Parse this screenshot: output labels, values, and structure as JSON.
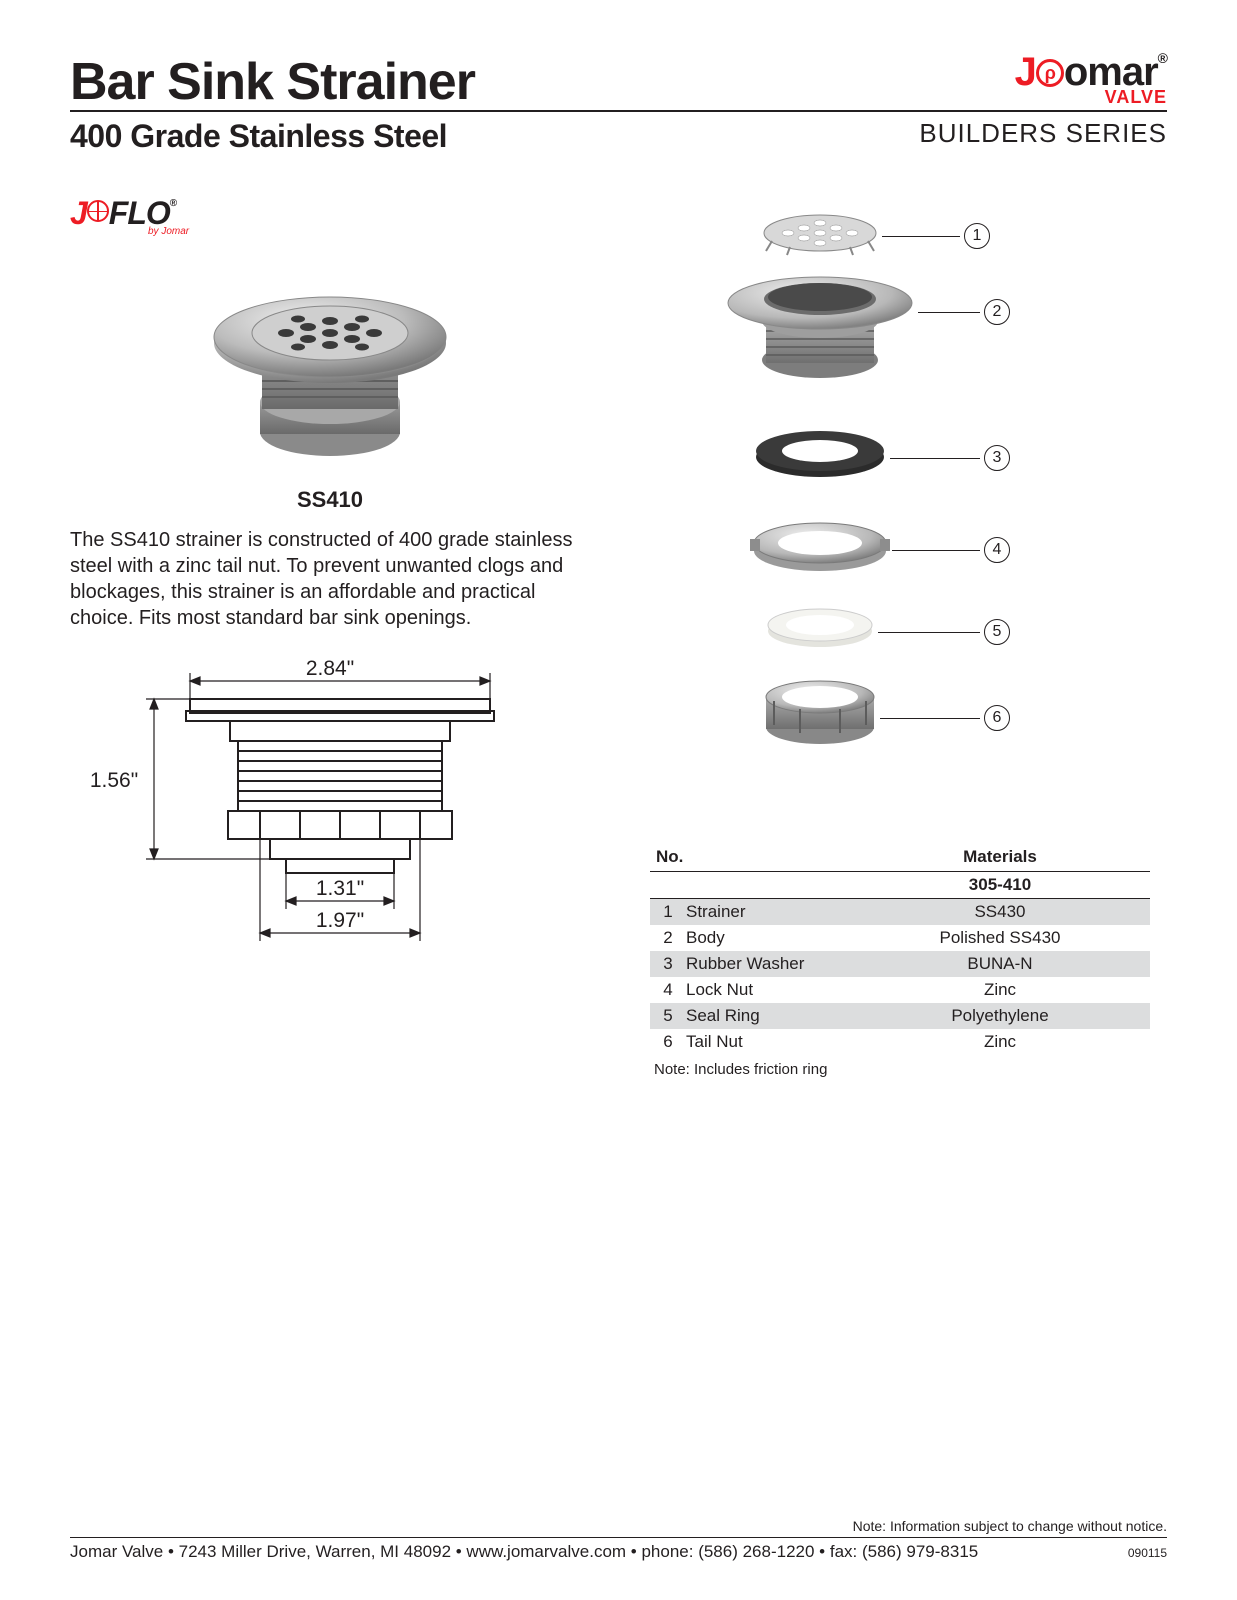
{
  "header": {
    "title": "Bar Sink Strainer",
    "subtitle": "400 Grade Stainless Steel",
    "series": "BUILDERS SERIES",
    "brand_main": "omar",
    "brand_sub": "VALVE"
  },
  "flo": {
    "text": "FLO",
    "by": "by Jomar"
  },
  "product": {
    "model": "SS410",
    "description": "The SS410 strainer is constructed of 400 grade stainless steel with a zinc tail nut. To prevent unwanted clogs and blockages, this strainer is an affordable and practical choice. Fits most standard bar sink openings."
  },
  "dimensions": {
    "top_width": "2.84\"",
    "height": "1.56\"",
    "inner_dia": "1.31\"",
    "outer_dia": "1.97\""
  },
  "callouts": [
    "1",
    "2",
    "3",
    "4",
    "5",
    "6"
  ],
  "materials": {
    "head_no": "No.",
    "head_mat": "Materials",
    "partno": "305-410",
    "rows": [
      {
        "n": "1",
        "part": "Strainer",
        "mat": "SS430"
      },
      {
        "n": "2",
        "part": "Body",
        "mat": "Polished SS430"
      },
      {
        "n": "3",
        "part": "Rubber Washer",
        "mat": "BUNA-N"
      },
      {
        "n": "4",
        "part": "Lock Nut",
        "mat": "Zinc"
      },
      {
        "n": "5",
        "part": "Seal Ring",
        "mat": "Polyethylene"
      },
      {
        "n": "6",
        "part": "Tail Nut",
        "mat": "Zinc"
      }
    ],
    "note": "Note: Includes friction ring"
  },
  "footer": {
    "notice": "Note: Information subject to change without notice.",
    "line": "Jomar Valve  •  7243 Miller Drive, Warren, MI 48092  •  www.jomarvalve.com  •  phone: (586) 268-1220  •  fax: (586) 979-8315",
    "code": "090115"
  },
  "colors": {
    "accent": "#ed1c24",
    "text": "#231f20",
    "row_alt": "#dcddde",
    "metal_light": "#d9d9d9",
    "metal_mid": "#b0b0b0",
    "metal_dark": "#7a7a7a",
    "rubber": "#2b2b2b",
    "plastic": "#f4f4f2"
  }
}
